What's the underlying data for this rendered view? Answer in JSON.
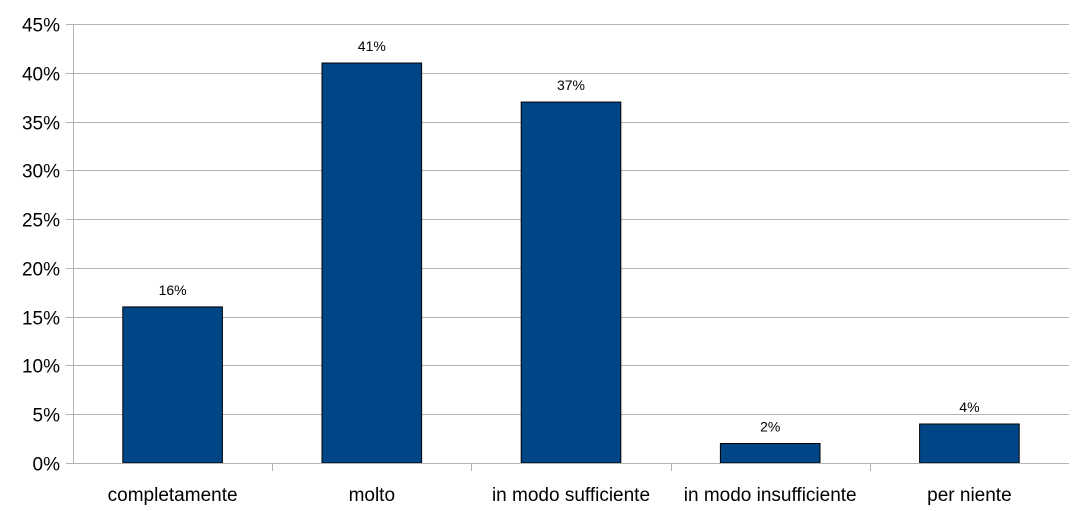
{
  "chart_data": {
    "type": "bar",
    "title": "",
    "xlabel": "",
    "ylabel": "",
    "categories": [
      "completamente",
      "molto",
      "in modo sufficiente",
      "in modo insufficiente",
      "per niente"
    ],
    "values": [
      16,
      41,
      37,
      2,
      4
    ],
    "value_labels": [
      "16%",
      "41%",
      "37%",
      "2%",
      "4%"
    ],
    "y_ticks": [
      0,
      5,
      10,
      15,
      20,
      25,
      30,
      35,
      40,
      45
    ],
    "y_tick_labels": [
      "0%",
      "5%",
      "10%",
      "15%",
      "20%",
      "25%",
      "30%",
      "35%",
      "40%",
      "45%"
    ],
    "ylim": [
      0,
      45
    ],
    "grid": true,
    "legend": "none",
    "bar_color": "#004586",
    "grid_color": "#b3b3b3"
  }
}
